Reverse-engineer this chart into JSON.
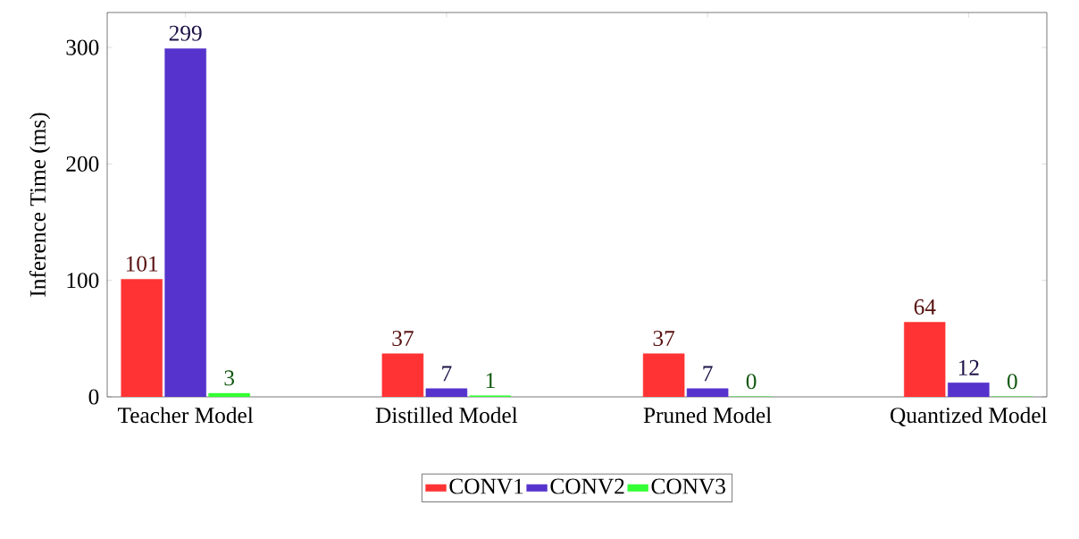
{
  "chart_data": {
    "type": "bar",
    "ylabel": "Inference Time (ms)",
    "categories": [
      "Teacher Model",
      "Distilled Model",
      "Pruned Model",
      "Quantized Model"
    ],
    "series": [
      {
        "name": "CONV1",
        "color": "#ff3333",
        "values": [
          101,
          37,
          37,
          64
        ]
      },
      {
        "name": "CONV2",
        "color": "#5533cc",
        "values": [
          299,
          7,
          7,
          12
        ]
      },
      {
        "name": "CONV3",
        "color": "#33ff33",
        "values": [
          3,
          1,
          0,
          0
        ]
      }
    ],
    "ylim": [
      0,
      330
    ],
    "yticks": [
      0,
      100,
      200,
      300
    ],
    "data_labels": true,
    "legend": "bottom",
    "grid": false
  }
}
